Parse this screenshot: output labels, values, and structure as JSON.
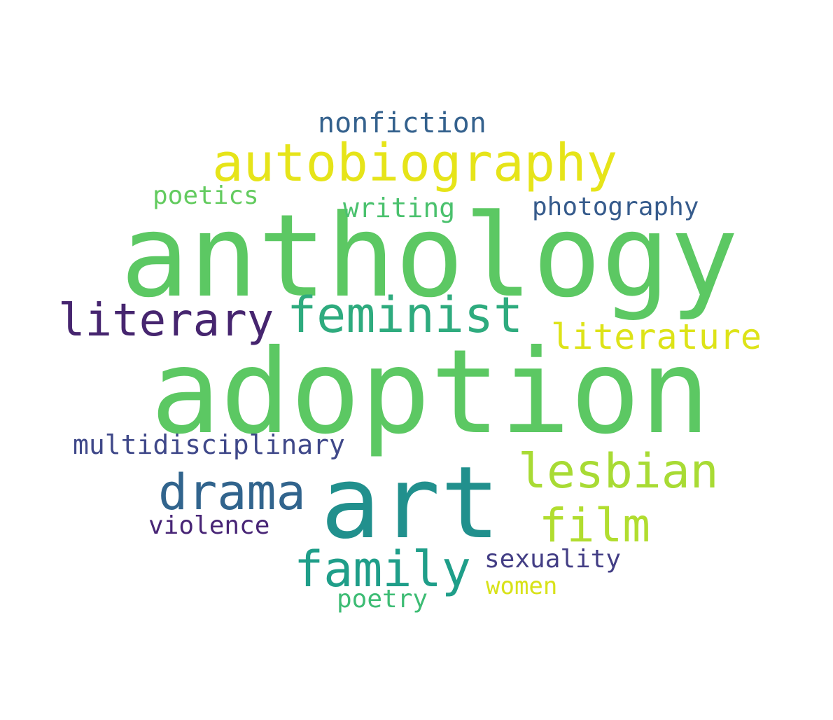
{
  "cloud": {
    "words": [
      {
        "key": "adoption",
        "text": "adoption",
        "color": "#5cc863"
      },
      {
        "key": "anthology",
        "text": "anthology",
        "color": "#5cc863"
      },
      {
        "key": "art",
        "text": "art",
        "color": "#21908d"
      },
      {
        "key": "autobiography",
        "text": "autobiography",
        "color": "#e6e419"
      },
      {
        "key": "feminist",
        "text": "feminist",
        "color": "#2eab7e"
      },
      {
        "key": "literary",
        "text": "literary",
        "color": "#46256f"
      },
      {
        "key": "lesbian",
        "text": "lesbian",
        "color": "#a8db34"
      },
      {
        "key": "drama",
        "text": "drama",
        "color": "#31648d"
      },
      {
        "key": "family",
        "text": "family",
        "color": "#1f9e89"
      },
      {
        "key": "film",
        "text": "film",
        "color": "#b1dd2f"
      },
      {
        "key": "literature",
        "text": "literature",
        "color": "#dde318"
      },
      {
        "key": "nonfiction",
        "text": "nonfiction",
        "color": "#34618d"
      },
      {
        "key": "photography",
        "text": "photography",
        "color": "#365b8c"
      },
      {
        "key": "multidisciplinary",
        "text": "multidisciplinary",
        "color": "#3f4889"
      },
      {
        "key": "writing",
        "text": "writing",
        "color": "#4ac16d"
      },
      {
        "key": "poetics",
        "text": "poetics",
        "color": "#63cb5f"
      },
      {
        "key": "violence",
        "text": "violence",
        "color": "#482576"
      },
      {
        "key": "sexuality",
        "text": "sexuality",
        "color": "#433e85"
      },
      {
        "key": "women",
        "text": "women",
        "color": "#d8e219"
      },
      {
        "key": "poetry",
        "text": "poetry",
        "color": "#3dbc74"
      }
    ]
  }
}
